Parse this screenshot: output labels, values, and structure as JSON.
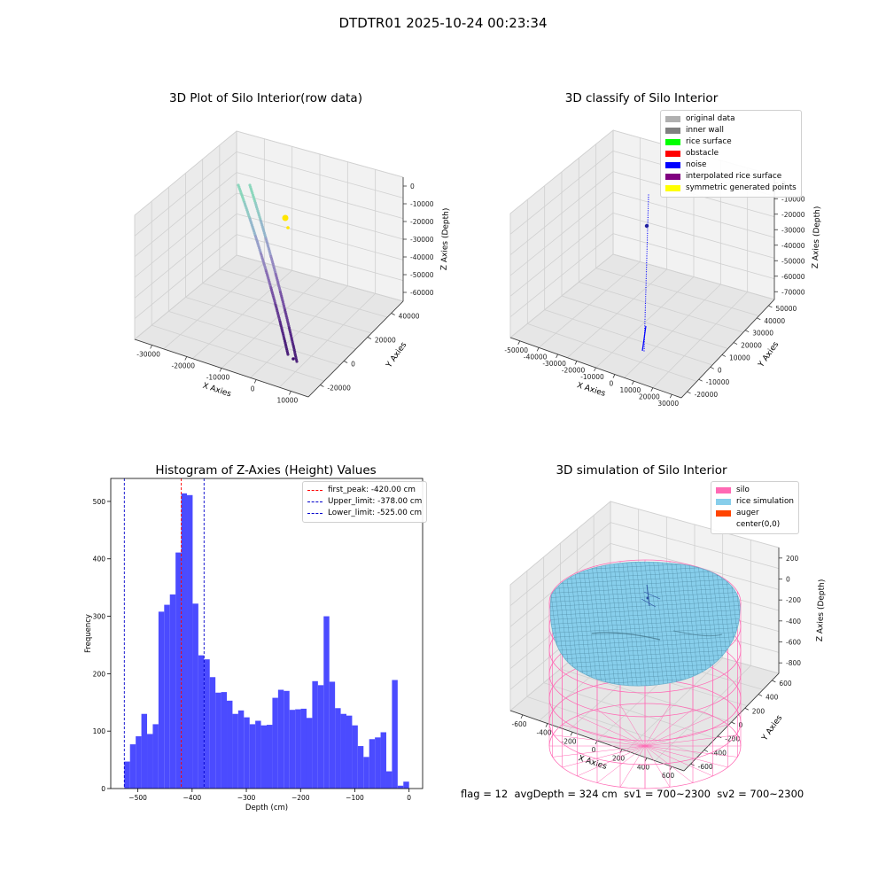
{
  "figure_title": "DTDTR01 2025-10-24 00:23:34",
  "footer": {
    "flag": "flag = 12",
    "avg_depth": "avgDepth = 324 cm",
    "sv1": "sv1 = 700~2300",
    "sv2": "sv2 = 700~2300"
  },
  "colors": {
    "original": "#b0b0b0",
    "inner_wall": "#808080",
    "rice_surface": "#00ff00",
    "obstacle": "#ff0000",
    "noise": "#0000ff",
    "interpolated": "#800080",
    "symmetric": "#ffff00",
    "silo": "#ff69b4",
    "rice_sim": "#87ceeb",
    "auger": "#ff4500",
    "hist_bar": "#4b4bff",
    "first_peak": "#ff0000",
    "limit": "#0000cc"
  },
  "chart_data": [
    {
      "type": "scatter",
      "projection": "3d",
      "title": "3D Plot of Silo Interior(row data)",
      "xlabel": "X Axies",
      "ylabel": "Y Axies",
      "zlabel": "Z Axies (Depth)",
      "xticks": [
        "-30000",
        "-20000",
        "-10000",
        "0",
        "10000"
      ],
      "yticks": [
        "-20000",
        "0",
        "20000",
        "40000"
      ],
      "zticks": [
        "0",
        "-10000",
        "-20000",
        "-30000",
        "-40000",
        "-50000",
        "-60000"
      ],
      "colormap": "viridis (by depth)",
      "series_note": "two curved point streams descending from about z=-3000 to z=-63000"
    },
    {
      "type": "scatter",
      "projection": "3d",
      "title": "3D classify of Silo Interior",
      "xlabel": "X Axies",
      "ylabel": "Y Axies",
      "zlabel": "Z Axies (Depth)",
      "xticks": [
        "-50000",
        "-40000",
        "-30000",
        "-20000",
        "-10000",
        "0",
        "10000",
        "20000",
        "30000"
      ],
      "yticks": [
        "-20000",
        "-10000",
        "0",
        "10000",
        "20000",
        "30000",
        "40000",
        "50000"
      ],
      "zticks": [
        "0",
        "-10000",
        "-20000",
        "-30000",
        "-40000",
        "-50000",
        "-60000",
        "-70000"
      ],
      "legend": [
        "original data",
        "inner wall",
        "rice surface",
        "obstacle",
        "noise",
        "interpolated rice surface",
        "symmetric generated points"
      ],
      "legend_position": "top-right"
    },
    {
      "type": "bar",
      "title": "Histogram of Z-Axies (Height) Values",
      "xlabel": "Depth (cm)",
      "ylabel": "Frequency",
      "xlim": [
        -550,
        25
      ],
      "ylim": [
        0,
        540
      ],
      "xticks": [
        -500,
        -400,
        -300,
        -200,
        -100,
        0
      ],
      "yticks": [
        0,
        100,
        200,
        300,
        400,
        500
      ],
      "bin_width": 10.5,
      "bin_start": -525,
      "values": [
        47,
        77,
        91,
        130,
        95,
        112,
        308,
        320,
        338,
        411,
        514,
        511,
        322,
        232,
        225,
        194,
        167,
        168,
        153,
        130,
        136,
        124,
        112,
        118,
        110,
        111,
        158,
        172,
        170,
        137,
        138,
        139,
        123,
        187,
        180,
        300,
        186,
        140,
        130,
        127,
        110,
        74,
        55,
        86,
        89,
        98,
        30,
        189,
        5,
        12
      ],
      "vlines": [
        {
          "label": "first_peak: -420.00 cm",
          "x": -420,
          "color": "#ff0000"
        },
        {
          "label": "Upper_limit: -378.00 cm",
          "x": -378,
          "color": "#0000cc"
        },
        {
          "label": "Lower_limit: -525.00 cm",
          "x": -525,
          "color": "#0000cc"
        }
      ],
      "legend_position": "top-right",
      "grid": false
    },
    {
      "type": "surface",
      "projection": "3d",
      "title": "3D simulation of Silo Interior",
      "xlabel": "X Axies",
      "ylabel": "Y Axies",
      "zlabel": "Z Axies (Depth)",
      "xticks": [
        "-600",
        "-400",
        "-200",
        "0",
        "200",
        "400",
        "600"
      ],
      "yticks": [
        "-600",
        "-400",
        "-200",
        "0",
        "200",
        "400",
        "600"
      ],
      "zticks": [
        "200",
        "0",
        "-200",
        "-400",
        "-600",
        "-800"
      ],
      "legend": [
        "silo",
        "rice simulation",
        "auger",
        "center(0,0)"
      ],
      "legend_position": "top-right"
    }
  ]
}
